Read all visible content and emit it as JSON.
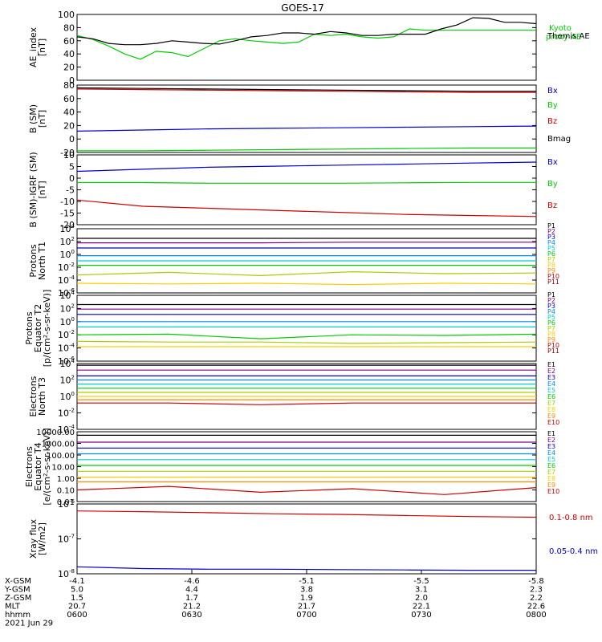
{
  "title": "GOES-17",
  "chart_data": [
    {
      "type": "line",
      "ylabel": [
        "AE_index",
        "[nT]"
      ],
      "ylim": [
        0,
        100
      ],
      "yticks": [
        "0",
        "20",
        "40",
        "60",
        "80",
        "100"
      ],
      "yscale": "linear",
      "series": [
        {
          "name": "Kyoto proxy AE",
          "color": "#00cc00",
          "values": [
            68,
            62,
            52,
            40,
            32,
            44,
            42,
            36,
            48,
            60,
            63,
            60,
            58,
            56,
            58,
            70,
            68,
            70,
            66,
            64,
            66,
            78,
            76,
            76,
            76,
            76,
            76,
            76,
            76,
            76
          ]
        },
        {
          "name": "Themis AE",
          "color": "#000000",
          "values": [
            66,
            63,
            56,
            54,
            54,
            56,
            60,
            58,
            56,
            55,
            60,
            66,
            68,
            72,
            72,
            70,
            74,
            72,
            68,
            68,
            70,
            70,
            70,
            78,
            84,
            95,
            94,
            88,
            88,
            86
          ]
        }
      ],
      "legend": [
        "Kyoto proxy AE",
        "Themis AE"
      ]
    },
    {
      "type": "line",
      "ylabel": [
        "B (SM)",
        "[nT]"
      ],
      "ylim": [
        -20,
        100
      ],
      "yticks": [
        "-20",
        "0",
        "20",
        "40",
        "60",
        "80"
      ],
      "yscale": "linear",
      "series": [
        {
          "name": "Bx",
          "color": "#0000cc",
          "values": [
            18,
            20,
            22,
            23,
            24,
            25,
            26,
            27
          ]
        },
        {
          "name": "By",
          "color": "#00cc00",
          "values": [
            -17,
            -17,
            -16,
            -15,
            -14,
            -13,
            -12,
            -12
          ]
        },
        {
          "name": "Bz",
          "color": "#cc0000",
          "values": [
            93,
            92,
            91,
            90,
            89,
            88,
            87,
            87
          ]
        },
        {
          "name": "Bmag",
          "color": "#000000",
          "values": [
            95,
            94,
            93,
            92,
            91,
            90,
            89,
            89
          ]
        }
      ],
      "legend": [
        "Bx",
        "By",
        "Bz",
        "Bmag"
      ]
    },
    {
      "type": "line",
      "ylabel": [
        "B (SM)-IGRF (SM)",
        "[nT]"
      ],
      "ylim": [
        -22,
        12
      ],
      "yticks": [
        "-20",
        "-15",
        "-10",
        "-5",
        "0",
        "5",
        "10"
      ],
      "yscale": "linear",
      "series": [
        {
          "name": "Bx",
          "color": "#0000cc",
          "values": [
            4,
            5,
            6,
            6.5,
            7,
            7.5,
            8,
            8.5
          ]
        },
        {
          "name": "By",
          "color": "#00cc00",
          "values": [
            -1.5,
            -1.5,
            -1.8,
            -1.8,
            -1.8,
            -1.6,
            -1.4,
            -1.4
          ]
        },
        {
          "name": "Bz",
          "color": "#cc0000",
          "values": [
            -10,
            -13,
            -14,
            -15,
            -16,
            -17,
            -17.5,
            -18
          ]
        }
      ],
      "legend": [
        "Bx",
        "By",
        "Bz"
      ]
    },
    {
      "type": "line",
      "ylabel": [
        "Protons",
        "North T1"
      ],
      "ylim": [
        -6,
        4
      ],
      "yticks": [
        "10^-6",
        "10^-4",
        "10^-2",
        "10^0",
        "10^2",
        "10^4"
      ],
      "yscale": "log",
      "series": [
        {
          "name": "P1",
          "color": "#000000",
          "values": [
            2.5,
            2.5,
            2.5,
            2.5,
            2.5,
            2.5
          ]
        },
        {
          "name": "P2",
          "color": "#800080",
          "values": [
            1.8,
            1.8,
            1.8,
            1.9,
            1.9,
            1.9
          ]
        },
        {
          "name": "P3",
          "color": "#0000cc",
          "values": [
            1.0,
            1.0,
            1.0,
            1.0,
            1.0,
            1.0
          ]
        },
        {
          "name": "P4",
          "color": "#0088ff",
          "values": [
            -0.2,
            -0.2,
            -0.2,
            -0.2,
            -0.2,
            -0.2
          ]
        },
        {
          "name": "P5",
          "color": "#00cccc",
          "values": [
            -1.0,
            -1.0,
            -1.0,
            -1.0,
            -1.0,
            -1.0
          ]
        },
        {
          "name": "P6",
          "color": "#00cc00",
          "values": [
            -1.7,
            -1.7,
            -1.7,
            -1.7,
            -1.7,
            -1.7
          ]
        },
        {
          "name": "P7",
          "color": "#aacc00",
          "values": [
            -3.2,
            -2.8,
            -3.3,
            -2.7,
            -3.0,
            -2.9
          ]
        },
        {
          "name": "P8",
          "color": "#ffcc00",
          "values": [
            -4.5,
            -4.6,
            -4.5,
            -4.7,
            -4.5,
            -4.6
          ]
        },
        {
          "name": "P9",
          "color": "#ff8800",
          "values": []
        },
        {
          "name": "P10",
          "color": "#cc0000",
          "values": []
        },
        {
          "name": "P11",
          "color": "#880000",
          "values": []
        }
      ],
      "legend": [
        "P1",
        "P2",
        "P3",
        "P4",
        "P5",
        "P6",
        "P7",
        "P8",
        "P9",
        "P10",
        "P11"
      ]
    },
    {
      "type": "line",
      "ylabel": [
        "Protons",
        "Equator T2",
        "[p/(cm²-s-sr-keV)]"
      ],
      "ylim": [
        -6,
        4
      ],
      "yticks": [
        "10^-6",
        "10^-4",
        "10^-2",
        "10^0",
        "10^2",
        "10^4"
      ],
      "yscale": "log",
      "series": [
        {
          "name": "P1",
          "color": "#000000",
          "values": [
            2.6,
            2.6,
            2.6,
            2.6,
            2.6,
            2.6
          ]
        },
        {
          "name": "P2",
          "color": "#800080",
          "values": [
            1.9,
            1.9,
            1.9,
            1.9,
            1.9,
            1.9
          ]
        },
        {
          "name": "P3",
          "color": "#0000cc",
          "values": [
            1.1,
            1.1,
            1.1,
            1.1,
            1.1,
            1.1
          ]
        },
        {
          "name": "P4",
          "color": "#0088ff",
          "values": [
            0.0,
            0.0,
            0.0,
            0.0,
            0.0,
            0.0
          ]
        },
        {
          "name": "P5",
          "color": "#00cccc",
          "values": [
            -0.8,
            -0.8,
            -0.8,
            -0.8,
            -0.8,
            -0.8
          ]
        },
        {
          "name": "P6",
          "color": "#00cc00",
          "values": [
            -2.0,
            -1.9,
            -2.6,
            -2.0,
            -2.1,
            -1.9
          ]
        },
        {
          "name": "P7",
          "color": "#aacc00",
          "values": [
            -3.0,
            -3.1,
            -3.1,
            -3.3,
            -3.2,
            -3.1
          ]
        },
        {
          "name": "P8",
          "color": "#ffcc00",
          "values": [
            -3.8,
            -3.8,
            -3.8,
            -3.8,
            -3.8,
            -3.8
          ]
        },
        {
          "name": "P9",
          "color": "#ff8800",
          "values": []
        },
        {
          "name": "P10",
          "color": "#cc0000",
          "values": []
        },
        {
          "name": "P11",
          "color": "#880000",
          "values": []
        }
      ],
      "legend": [
        "P1",
        "P2",
        "P3",
        "P4",
        "P5",
        "P6",
        "P7",
        "P8",
        "P9",
        "P10",
        "P11"
      ]
    },
    {
      "type": "line",
      "ylabel": [
        "Electrons",
        "North T3"
      ],
      "ylim": [
        -4,
        4
      ],
      "yticks": [
        "10^-4",
        "10^-2",
        "10^0",
        "10^2",
        "10^4"
      ],
      "yscale": "log",
      "series": [
        {
          "name": "E1",
          "color": "#000000",
          "values": [
            3.8,
            3.8,
            3.8,
            3.8,
            3.8,
            3.8
          ]
        },
        {
          "name": "E2",
          "color": "#800080",
          "values": [
            3.2,
            3.2,
            3.2,
            3.2,
            3.2,
            3.2
          ]
        },
        {
          "name": "E3",
          "color": "#0000cc",
          "values": [
            2.5,
            2.5,
            2.5,
            2.5,
            2.5,
            2.5
          ]
        },
        {
          "name": "E4",
          "color": "#0088ff",
          "values": [
            2.0,
            2.0,
            2.0,
            2.0,
            2.0,
            2.0
          ]
        },
        {
          "name": "E5",
          "color": "#00cccc",
          "values": [
            1.5,
            1.5,
            1.5,
            1.5,
            1.5,
            1.5
          ]
        },
        {
          "name": "E6",
          "color": "#00cc00",
          "values": [
            1.0,
            1.0,
            1.0,
            1.0,
            1.0,
            1.0
          ]
        },
        {
          "name": "E7",
          "color": "#aacc00",
          "values": [
            0.5,
            0.5,
            0.5,
            0.5,
            0.5,
            0.5
          ]
        },
        {
          "name": "E8",
          "color": "#ffcc00",
          "values": [
            0.0,
            0.0,
            0.0,
            0.0,
            0.0,
            0.0
          ]
        },
        {
          "name": "E9",
          "color": "#ff8800",
          "values": [
            -0.4,
            -0.4,
            -0.4,
            -0.4,
            -0.4,
            -0.4
          ]
        },
        {
          "name": "E10",
          "color": "#cc0000",
          "values": [
            -0.8,
            -0.8,
            -1.0,
            -0.8,
            -0.8,
            -0.8
          ]
        }
      ],
      "legend": [
        "E1",
        "E2",
        "E3",
        "E4",
        "E5",
        "E6",
        "E7",
        "E8",
        "E9",
        "E10"
      ]
    },
    {
      "type": "line",
      "ylabel": [
        "Electrons",
        "Equator T4",
        "[e/(cm²-s-sr-keV)]"
      ],
      "ylim": [
        0.01,
        10000
      ],
      "yticks": [
        "0.01",
        "0.10",
        "1.00",
        "10.00",
        "100.00",
        "1000.00",
        "10000.00"
      ],
      "yscale": "log",
      "series": [
        {
          "name": "E1",
          "color": "#000000",
          "values": [
            3.7,
            3.7,
            3.7,
            3.7,
            3.7,
            3.7
          ]
        },
        {
          "name": "E2",
          "color": "#800080",
          "values": [
            3.1,
            3.1,
            3.1,
            3.1,
            3.1,
            3.1
          ]
        },
        {
          "name": "E3",
          "color": "#0000cc",
          "values": [
            2.6,
            2.6,
            2.6,
            2.6,
            2.6,
            2.6
          ]
        },
        {
          "name": "E4",
          "color": "#0088ff",
          "values": [
            2.1,
            2.1,
            2.1,
            2.1,
            2.1,
            2.1
          ]
        },
        {
          "name": "E5",
          "color": "#00cccc",
          "values": [
            1.6,
            1.6,
            1.6,
            1.6,
            1.6,
            1.6
          ]
        },
        {
          "name": "E6",
          "color": "#00cc00",
          "values": [
            1.1,
            1.1,
            1.1,
            1.1,
            1.1,
            1.1
          ]
        },
        {
          "name": "E7",
          "color": "#aacc00",
          "values": [
            0.6,
            0.6,
            0.6,
            0.6,
            0.6,
            0.6
          ]
        },
        {
          "name": "E8",
          "color": "#ffcc00",
          "values": [
            0.1,
            0.1,
            0.1,
            0.1,
            0.1,
            0.1
          ]
        },
        {
          "name": "E9",
          "color": "#ff8800",
          "values": [
            -0.3,
            -0.3,
            -0.3,
            -0.3,
            -0.3,
            -0.3
          ]
        },
        {
          "name": "E10",
          "color": "#cc0000",
          "values": [
            -1.0,
            -0.7,
            -1.2,
            -0.9,
            -1.4,
            -0.8
          ]
        }
      ],
      "legend": [
        "E1",
        "E2",
        "E3",
        "E4",
        "E5",
        "E6",
        "E7",
        "E8",
        "E9",
        "E10"
      ]
    },
    {
      "type": "line",
      "ylabel": [
        "Xray flux",
        "[W/m2]"
      ],
      "ylim": [
        -8,
        -6
      ],
      "yticks": [
        "10^-8",
        "10^-7",
        "10^-6"
      ],
      "yscale": "log",
      "series": [
        {
          "name": "0.1-0.8 nm",
          "color": "#cc0000",
          "values": [
            -6.2,
            -6.22,
            -6.25,
            -6.28,
            -6.3,
            -6.33,
            -6.36,
            -6.38
          ]
        },
        {
          "name": "0.05-0.4 nm",
          "color": "#0000cc",
          "values": [
            -7.8,
            -7.85,
            -7.87,
            -7.87,
            -7.88,
            -7.89,
            -7.9,
            -7.9
          ]
        }
      ],
      "legend": [
        "0.1-0.8 nm",
        "0.05-0.4 nm"
      ]
    }
  ],
  "xaxis": {
    "rows": [
      {
        "label": "X-GSM",
        "values": [
          "-4.1",
          "-4.6",
          "-5.1",
          "-5.5",
          "-5.8"
        ]
      },
      {
        "label": "Y-GSM",
        "values": [
          "5.0",
          "4.4",
          "3.8",
          "3.1",
          "2.3"
        ]
      },
      {
        "label": "Z-GSM",
        "values": [
          "1.5",
          "1.7",
          "1.9",
          "2.0",
          "2.2"
        ]
      },
      {
        "label": "MLT",
        "values": [
          "20.7",
          "21.2",
          "21.7",
          "22.1",
          "22.6"
        ]
      },
      {
        "label": "hhmm",
        "values": [
          "0600",
          "0630",
          "0700",
          "0730",
          "0800"
        ]
      }
    ],
    "date": "2021 Jun 29"
  }
}
